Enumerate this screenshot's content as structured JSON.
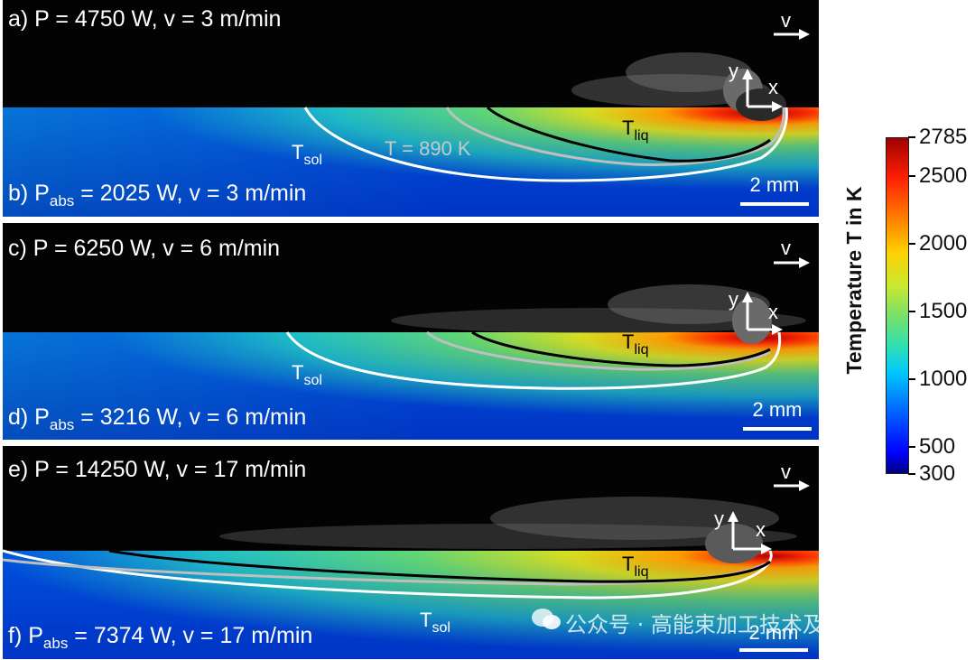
{
  "panels": [
    {
      "top_label": "a) P = 4750 W, v = 3 m/min",
      "bottom_label_pre": "b) P",
      "bottom_label_sub": "abs",
      "bottom_label_post": " = 2025 W, v = 3 m/min",
      "tsol": "T",
      "tsol_sub": "sol",
      "tliq": "T",
      "tliq_sub": "liq",
      "iso_890": "T = 890 K",
      "scale": "2 mm",
      "v": "v",
      "x": "x",
      "y": "y"
    },
    {
      "top_label": "c) P = 6250 W, v = 6 m/min",
      "bottom_label_pre": "d) P",
      "bottom_label_sub": "abs",
      "bottom_label_post": " = 3216 W, v = 6 m/min",
      "tsol": "T",
      "tsol_sub": "sol",
      "tliq": "T",
      "tliq_sub": "liq",
      "scale": "2 mm",
      "v": "v",
      "x": "x",
      "y": "y"
    },
    {
      "top_label": "e) P = 14250 W, v = 17 m/min",
      "bottom_label_pre": "f) P",
      "bottom_label_sub": "abs",
      "bottom_label_post": " = 7374 W, v = 17 m/min",
      "tsol": "T",
      "tsol_sub": "sol",
      "tliq": "T",
      "tliq_sub": "liq",
      "scale": "2 mm",
      "v": "v",
      "x": "x",
      "y": "y"
    }
  ],
  "colorbar": {
    "title": "Temperature T in K",
    "ticks": [
      "2785",
      "2500",
      "2000",
      "1500",
      "1000",
      "500",
      "300"
    ],
    "min": 300,
    "max": 2785
  },
  "watermark": "公众号 · 高能束加工技术及应用"
}
